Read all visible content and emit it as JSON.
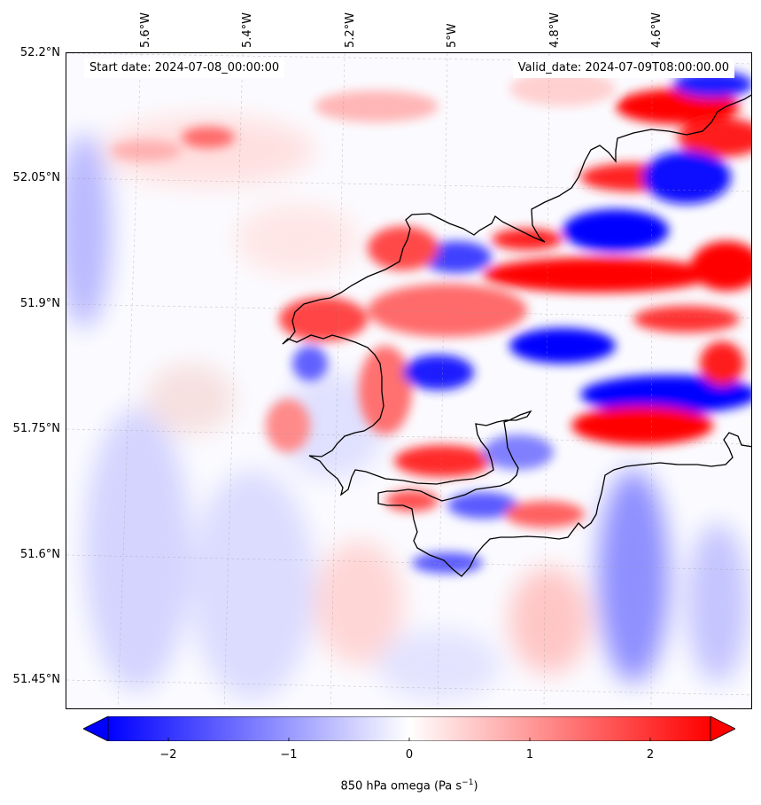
{
  "map": {
    "variable_label": "850 hPa omega (Pa s",
    "variable_unit_sup": "−1",
    "variable_label_close": ")",
    "start_date": "Start date: 2024-07-08_00:00:00",
    "valid_date": "Valid_date: 2024-07-09T08:00:00.00",
    "longitude_labels": [
      "5.6°W",
      "5.4°W",
      "5.2°W",
      "5°W",
      "4.8°W",
      "4.6°W"
    ],
    "latitude_labels": [
      "52.2°N",
      "52.05°N",
      "51.9°N",
      "51.75°N",
      "51.6°N",
      "51.45°N"
    ],
    "colormap": "bwr",
    "colors": {
      "negative": "#0000ff",
      "neutral": "#ffffff",
      "positive": "#ff0000",
      "coastline": "#000000"
    },
    "gridlines": true
  },
  "colorbar": {
    "range": [
      -2.5,
      2.5
    ],
    "ticks": [
      "−2",
      "−1",
      "0",
      "1",
      "2"
    ],
    "tick_values": [
      -2,
      -1,
      0,
      1,
      2
    ],
    "extend": "both"
  }
}
